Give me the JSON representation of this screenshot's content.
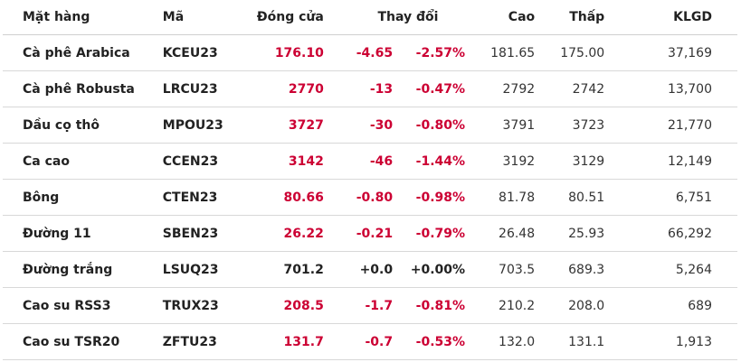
{
  "headers": {
    "name": "Mặt hàng",
    "code": "Mã",
    "close": "Đóng cửa",
    "change": "Thay đổi",
    "high": "Cao",
    "low": "Thấp",
    "volume": "KLGD"
  },
  "colors": {
    "negative": "#cc0033",
    "neutral": "#222222"
  },
  "rows": [
    {
      "name": "Cà phê Arabica",
      "code": "KCEU23",
      "close": "176.10",
      "change": "-4.65",
      "pct": "-2.57%",
      "high": "181.65",
      "low": "175.00",
      "volume": "37,169",
      "trend": "down"
    },
    {
      "name": "Cà phê Robusta",
      "code": "LRCU23",
      "close": "2770",
      "change": "-13",
      "pct": "-0.47%",
      "high": "2792",
      "low": "2742",
      "volume": "13,700",
      "trend": "down"
    },
    {
      "name": "Dầu cọ thô",
      "code": "MPOU23",
      "close": "3727",
      "change": "-30",
      "pct": "-0.80%",
      "high": "3791",
      "low": "3723",
      "volume": "21,770",
      "trend": "down"
    },
    {
      "name": "Ca cao",
      "code": "CCEN23",
      "close": "3142",
      "change": "-46",
      "pct": "-1.44%",
      "high": "3192",
      "low": "3129",
      "volume": "12,149",
      "trend": "down"
    },
    {
      "name": "Bông",
      "code": "CTEN23",
      "close": "80.66",
      "change": "-0.80",
      "pct": "-0.98%",
      "high": "81.78",
      "low": "80.51",
      "volume": "6,751",
      "trend": "down"
    },
    {
      "name": "Đường 11",
      "code": "SBEN23",
      "close": "26.22",
      "change": "-0.21",
      "pct": "-0.79%",
      "high": "26.48",
      "low": "25.93",
      "volume": "66,292",
      "trend": "down"
    },
    {
      "name": "Đường trắng",
      "code": "LSUQ23",
      "close": "701.2",
      "change": "+0.0",
      "pct": "+0.00%",
      "high": "703.5",
      "low": "689.3",
      "volume": "5,264",
      "trend": "flat"
    },
    {
      "name": "Cao su RSS3",
      "code": "TRUX23",
      "close": "208.5",
      "change": "-1.7",
      "pct": "-0.81%",
      "high": "210.2",
      "low": "208.0",
      "volume": "689",
      "trend": "down"
    },
    {
      "name": "Cao su TSR20",
      "code": "ZFTU23",
      "close": "131.7",
      "change": "-0.7",
      "pct": "-0.53%",
      "high": "132.0",
      "low": "131.1",
      "volume": "1,913",
      "trend": "down"
    }
  ]
}
